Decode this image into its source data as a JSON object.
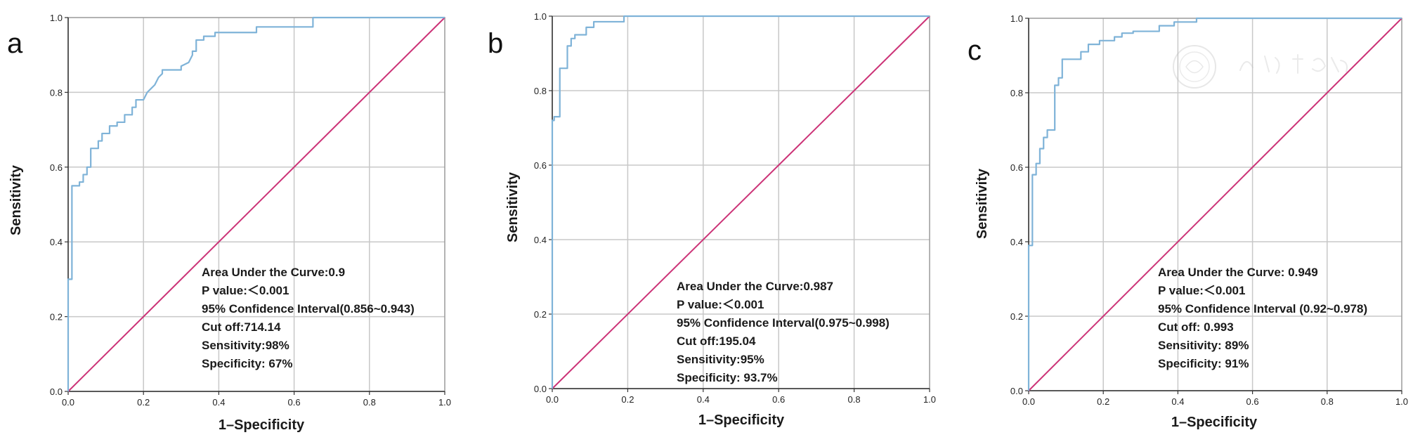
{
  "colors": {
    "roc_curve": "#7fb3d8",
    "reference_line": "#cc3377",
    "grid": "#c8c8c8"
  },
  "chart_data": [
    {
      "type": "line",
      "panel": "a",
      "xlabel": "1–Specificity",
      "ylabel": "Sensitivity",
      "xlim": [
        0,
        1
      ],
      "ylim": [
        0,
        1
      ],
      "grid": true,
      "ticks": [
        "0.0",
        "0.2",
        "0.4",
        "0.6",
        "0.8",
        "1.0"
      ],
      "annotations": [
        "Area Under the Curve:0.9",
        "P value:＜0.001",
        "95% Confidence Interval(0.856~0.943)",
        "Cut off:714.14",
        "Sensitivity:98%",
        "Specificity: 67%"
      ],
      "series": [
        {
          "values": [
            [
              0,
              0
            ],
            [
              0,
              0.3
            ],
            [
              0.01,
              0.3
            ],
            [
              0.01,
              0.55
            ],
            [
              0.03,
              0.55
            ],
            [
              0.03,
              0.56
            ],
            [
              0.04,
              0.56
            ],
            [
              0.04,
              0.58
            ],
            [
              0.05,
              0.58
            ],
            [
              0.05,
              0.6
            ],
            [
              0.06,
              0.6
            ],
            [
              0.06,
              0.65
            ],
            [
              0.08,
              0.65
            ],
            [
              0.08,
              0.67
            ],
            [
              0.09,
              0.67
            ],
            [
              0.09,
              0.69
            ],
            [
              0.11,
              0.69
            ],
            [
              0.11,
              0.71
            ],
            [
              0.13,
              0.71
            ],
            [
              0.13,
              0.72
            ],
            [
              0.15,
              0.72
            ],
            [
              0.15,
              0.74
            ],
            [
              0.17,
              0.74
            ],
            [
              0.17,
              0.76
            ],
            [
              0.18,
              0.76
            ],
            [
              0.18,
              0.78
            ],
            [
              0.2,
              0.78
            ],
            [
              0.21,
              0.8
            ],
            [
              0.22,
              0.81
            ],
            [
              0.23,
              0.82
            ],
            [
              0.24,
              0.84
            ],
            [
              0.25,
              0.85
            ],
            [
              0.25,
              0.86
            ],
            [
              0.3,
              0.86
            ],
            [
              0.3,
              0.87
            ],
            [
              0.32,
              0.88
            ],
            [
              0.33,
              0.9
            ],
            [
              0.33,
              0.91
            ],
            [
              0.34,
              0.91
            ],
            [
              0.34,
              0.94
            ],
            [
              0.36,
              0.94
            ],
            [
              0.36,
              0.95
            ],
            [
              0.39,
              0.95
            ],
            [
              0.39,
              0.96
            ],
            [
              0.5,
              0.96
            ],
            [
              0.5,
              0.975
            ],
            [
              0.65,
              0.975
            ],
            [
              0.65,
              1.0
            ],
            [
              1,
              1
            ]
          ]
        },
        {
          "values": [
            [
              0,
              0
            ],
            [
              1,
              1
            ]
          ]
        }
      ]
    },
    {
      "type": "line",
      "panel": "b",
      "xlabel": "1–Specificity",
      "ylabel": "Sensitivity",
      "xlim": [
        0,
        1
      ],
      "ylim": [
        0,
        1
      ],
      "grid": true,
      "ticks": [
        "0.0",
        "0.2",
        "0.4",
        "0.6",
        "0.8",
        "1.0"
      ],
      "annotations": [
        "Area Under the Curve:0.987",
        "P value:＜0.001",
        "95% Confidence Interval(0.975~0.998)",
        "Cut off:195.04",
        "Sensitivity:95%",
        "Specificity: 93.7%"
      ],
      "series": [
        {
          "values": [
            [
              0,
              0
            ],
            [
              0,
              0.72
            ],
            [
              0.005,
              0.72
            ],
            [
              0.005,
              0.73
            ],
            [
              0.02,
              0.73
            ],
            [
              0.02,
              0.86
            ],
            [
              0.04,
              0.86
            ],
            [
              0.04,
              0.92
            ],
            [
              0.05,
              0.92
            ],
            [
              0.05,
              0.94
            ],
            [
              0.06,
              0.94
            ],
            [
              0.06,
              0.95
            ],
            [
              0.09,
              0.95
            ],
            [
              0.09,
              0.97
            ],
            [
              0.11,
              0.97
            ],
            [
              0.11,
              0.985
            ],
            [
              0.19,
              0.985
            ],
            [
              0.19,
              1.0
            ],
            [
              1,
              1
            ]
          ]
        },
        {
          "values": [
            [
              0,
              0
            ],
            [
              1,
              1
            ]
          ]
        }
      ]
    },
    {
      "type": "line",
      "panel": "c",
      "xlabel": "1–Specificity",
      "ylabel": "Sensitivity",
      "xlim": [
        0,
        1
      ],
      "ylim": [
        0,
        1
      ],
      "grid": true,
      "ticks": [
        "0.0",
        "0.2",
        "0.4",
        "0.6",
        "0.8",
        "1.0"
      ],
      "annotations": [
        "Area Under the Curve: 0.949",
        "P value:＜0.001",
        "95% Confidence Interval (0.92~0.978)",
        "Cut off: 0.993",
        "Sensitivity: 89%",
        "Specificity: 91%"
      ],
      "series": [
        {
          "values": [
            [
              0,
              0
            ],
            [
              0,
              0.39
            ],
            [
              0.01,
              0.39
            ],
            [
              0.01,
              0.58
            ],
            [
              0.02,
              0.58
            ],
            [
              0.02,
              0.61
            ],
            [
              0.03,
              0.61
            ],
            [
              0.03,
              0.65
            ],
            [
              0.04,
              0.65
            ],
            [
              0.04,
              0.68
            ],
            [
              0.05,
              0.68
            ],
            [
              0.05,
              0.7
            ],
            [
              0.07,
              0.7
            ],
            [
              0.07,
              0.82
            ],
            [
              0.08,
              0.82
            ],
            [
              0.08,
              0.84
            ],
            [
              0.09,
              0.84
            ],
            [
              0.09,
              0.89
            ],
            [
              0.14,
              0.89
            ],
            [
              0.14,
              0.91
            ],
            [
              0.16,
              0.91
            ],
            [
              0.16,
              0.93
            ],
            [
              0.19,
              0.93
            ],
            [
              0.19,
              0.94
            ],
            [
              0.23,
              0.94
            ],
            [
              0.23,
              0.95
            ],
            [
              0.25,
              0.95
            ],
            [
              0.25,
              0.96
            ],
            [
              0.28,
              0.96
            ],
            [
              0.28,
              0.965
            ],
            [
              0.35,
              0.965
            ],
            [
              0.35,
              0.98
            ],
            [
              0.39,
              0.98
            ],
            [
              0.39,
              0.99
            ],
            [
              0.45,
              0.99
            ],
            [
              0.45,
              1.0
            ],
            [
              1,
              1
            ]
          ]
        },
        {
          "values": [
            [
              0,
              0
            ],
            [
              1,
              1
            ]
          ]
        }
      ]
    }
  ]
}
